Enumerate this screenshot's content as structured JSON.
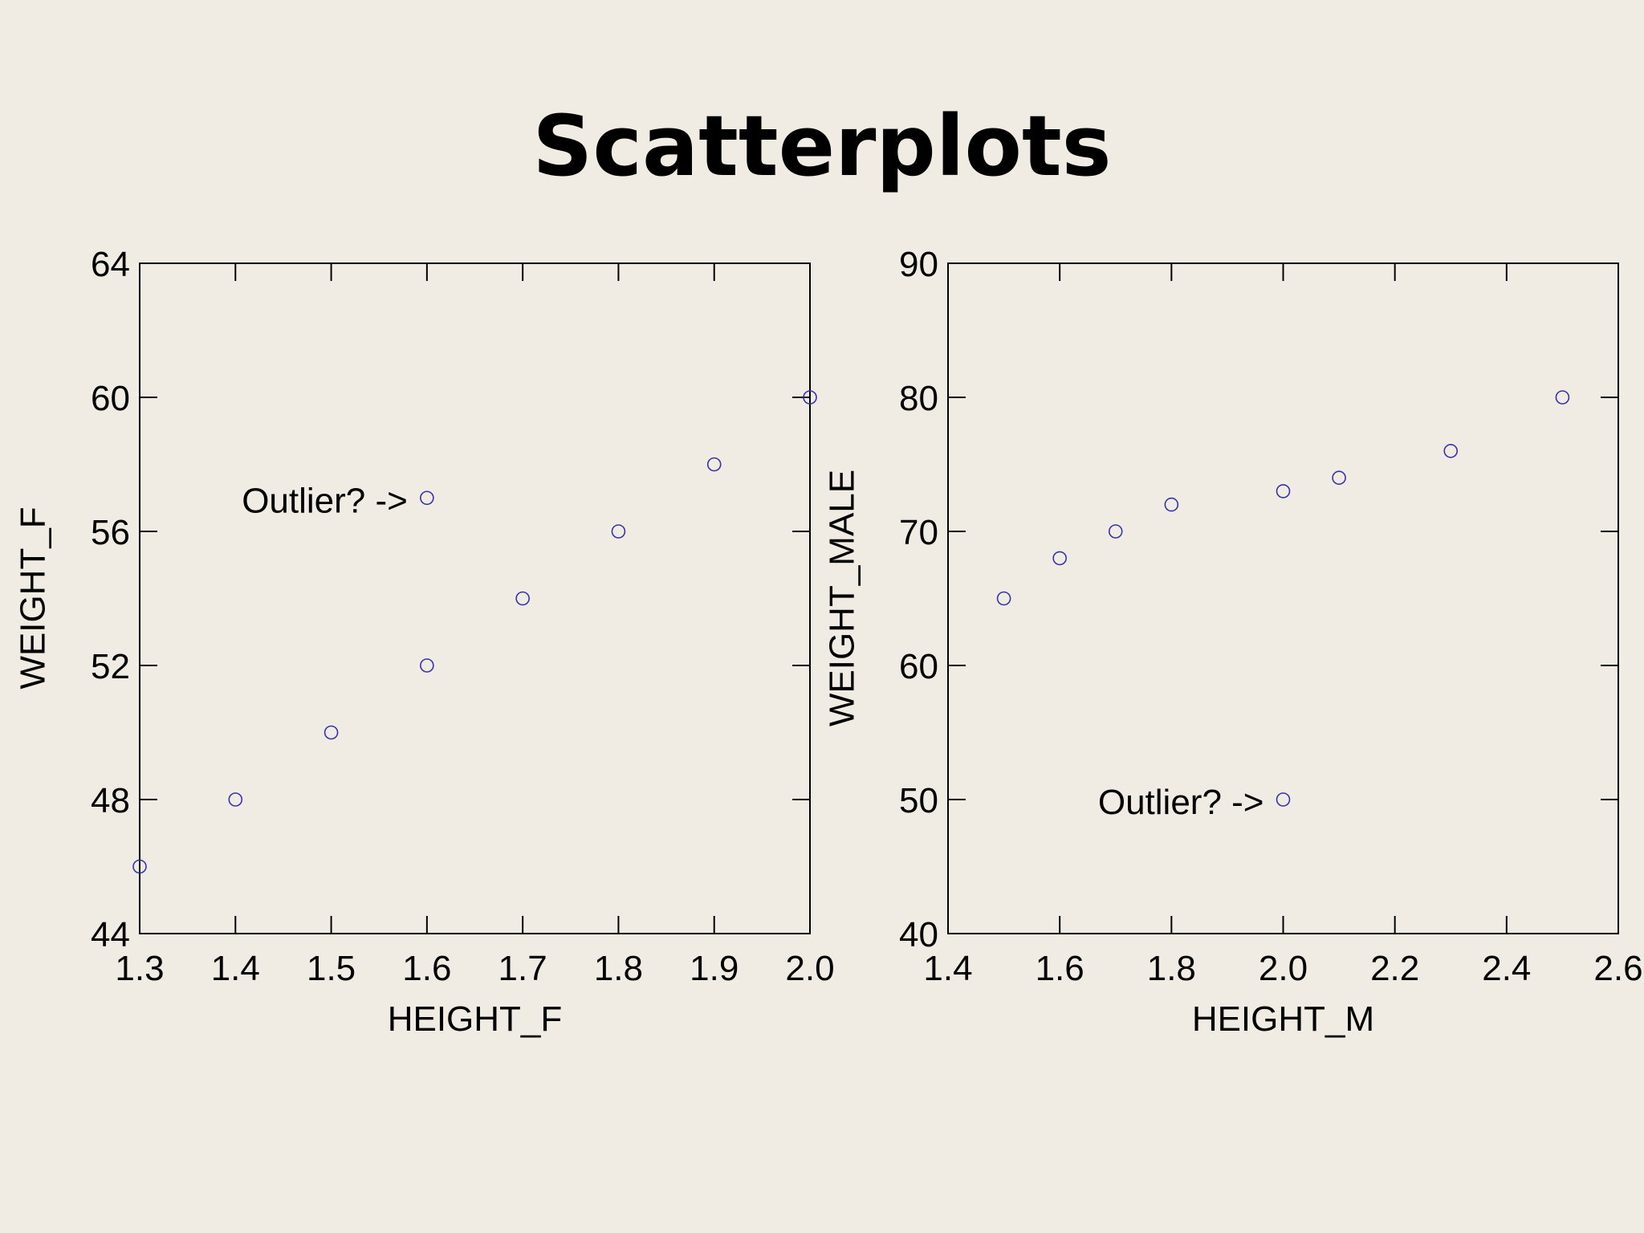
{
  "slide": {
    "title": "Scatterplots"
  },
  "colors": {
    "background": "#f0ece4",
    "marker": "#3333aa",
    "axis": "#000000"
  },
  "chart_data": [
    {
      "type": "scatter",
      "title": "",
      "xlabel": "HEIGHT_F",
      "ylabel": "WEIGHT_F",
      "xlim": [
        1.3,
        2.0
      ],
      "ylim": [
        44,
        64
      ],
      "xticks": [
        "1.3",
        "1.4",
        "1.5",
        "1.6",
        "1.7",
        "1.8",
        "1.9",
        "2.0"
      ],
      "yticks": [
        "44",
        "48",
        "52",
        "56",
        "60",
        "64"
      ],
      "grid": false,
      "marker": "open-circle",
      "points": [
        {
          "x": 1.3,
          "y": 46
        },
        {
          "x": 1.4,
          "y": 48
        },
        {
          "x": 1.5,
          "y": 50
        },
        {
          "x": 1.6,
          "y": 52
        },
        {
          "x": 1.6,
          "y": 57
        },
        {
          "x": 1.7,
          "y": 54
        },
        {
          "x": 1.8,
          "y": 56
        },
        {
          "x": 1.9,
          "y": 58
        },
        {
          "x": 2.0,
          "y": 60
        }
      ],
      "annotations": [
        {
          "text": "Outlier? ->",
          "x": 1.6,
          "y": 57
        }
      ]
    },
    {
      "type": "scatter",
      "title": "",
      "xlabel": "HEIGHT_M",
      "ylabel": "WEIGHT_MALE",
      "xlim": [
        1.4,
        2.6
      ],
      "ylim": [
        40,
        90
      ],
      "xticks": [
        "1.4",
        "1.6",
        "1.8",
        "2.0",
        "2.2",
        "2.4",
        "2.6"
      ],
      "yticks": [
        "40",
        "50",
        "60",
        "70",
        "80",
        "90"
      ],
      "grid": false,
      "marker": "open-circle",
      "points": [
        {
          "x": 1.5,
          "y": 65
        },
        {
          "x": 1.6,
          "y": 68
        },
        {
          "x": 1.7,
          "y": 70
        },
        {
          "x": 1.8,
          "y": 72
        },
        {
          "x": 2.0,
          "y": 73
        },
        {
          "x": 2.1,
          "y": 74
        },
        {
          "x": 2.3,
          "y": 76
        },
        {
          "x": 2.5,
          "y": 80
        },
        {
          "x": 2.0,
          "y": 50
        }
      ],
      "annotations": [
        {
          "text": "Outlier? ->",
          "x": 2.0,
          "y": 50
        }
      ]
    }
  ]
}
